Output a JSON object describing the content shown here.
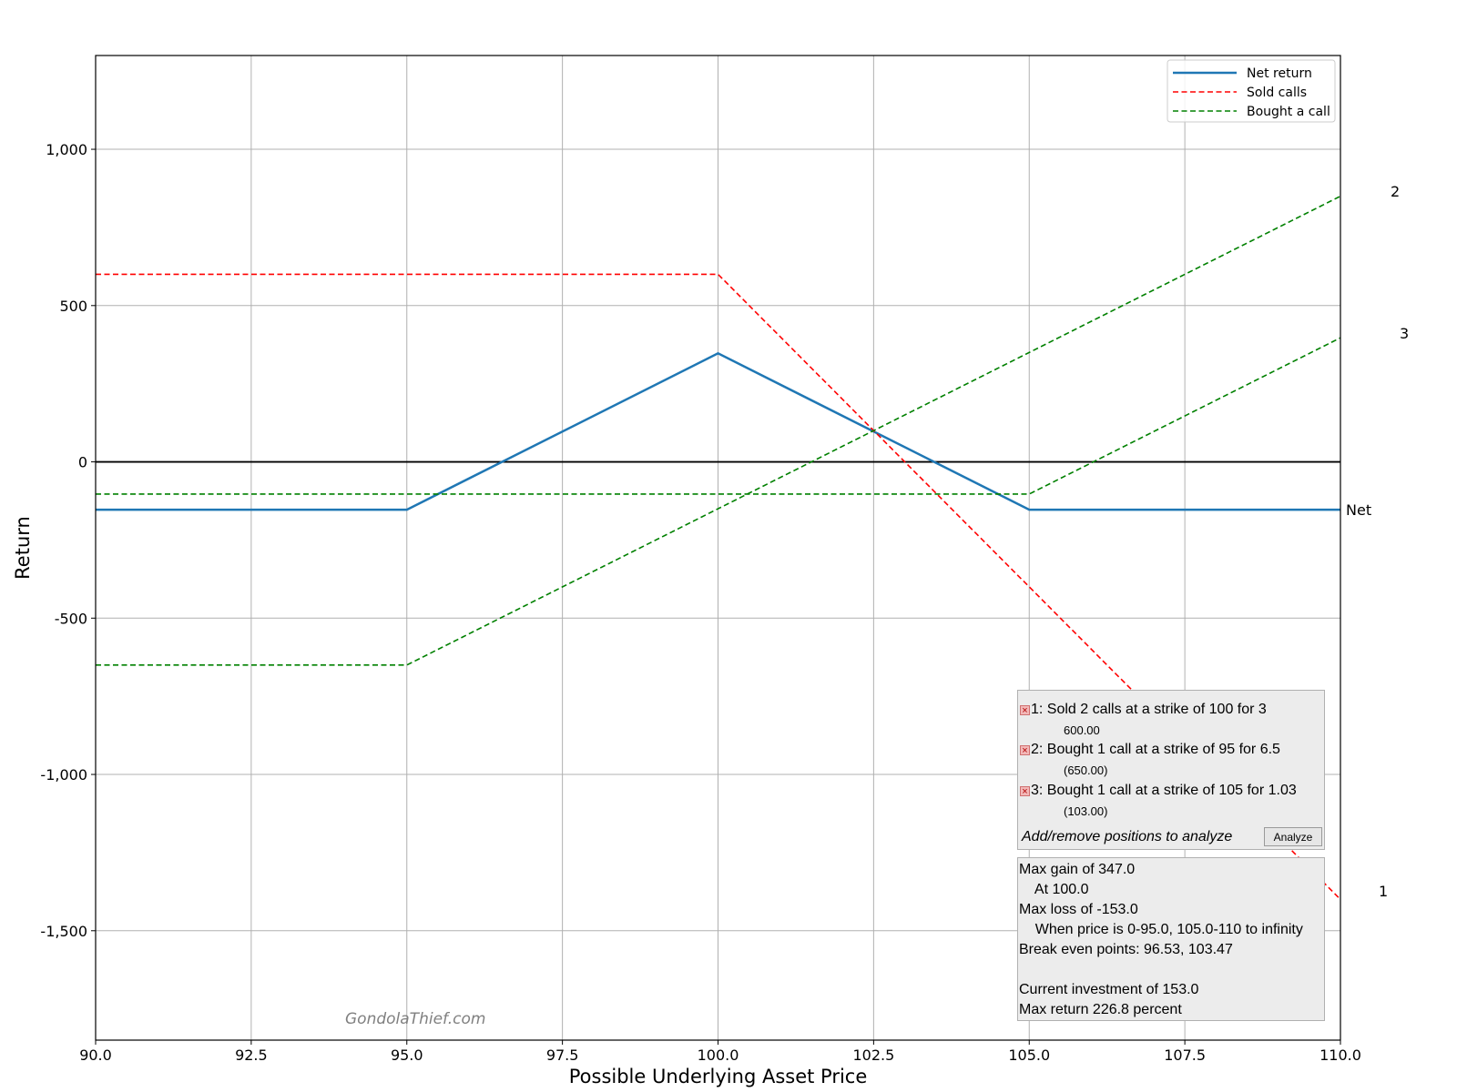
{
  "chart_data": {
    "type": "line",
    "xlabel": "Possible Underlying Asset Price",
    "ylabel": "Return",
    "xlim": [
      90,
      110
    ],
    "ylim": [
      -1850,
      1300
    ],
    "grid": true,
    "x_ticks": [
      "90.0",
      "92.5",
      "95.0",
      "97.5",
      "100.0",
      "102.5",
      "105.0",
      "107.5",
      "110.0"
    ],
    "y_ticks": [
      {
        "value": 1000,
        "label": "1,000"
      },
      {
        "value": 500,
        "label": "500"
      },
      {
        "value": 0,
        "label": "0"
      },
      {
        "value": -500,
        "label": "-500"
      },
      {
        "value": -1000,
        "label": "-1,000"
      },
      {
        "value": -1500,
        "label": "-1,500"
      }
    ],
    "legend": {
      "placement": "top-right",
      "entries": [
        "Net return",
        "Sold calls",
        "Bought a call"
      ]
    },
    "series": [
      {
        "name": "Net return",
        "style": "solid",
        "color": "#1f77b4",
        "end_label": "Net",
        "points": [
          [
            90,
            -153
          ],
          [
            95,
            -153
          ],
          [
            100,
            347
          ],
          [
            105,
            -153
          ],
          [
            110,
            -153
          ]
        ]
      },
      {
        "name": "Sold calls",
        "style": "dashed",
        "color": "#ff0000",
        "end_label": "1",
        "points": [
          [
            90,
            600
          ],
          [
            100,
            600
          ],
          [
            110,
            -1400
          ]
        ]
      },
      {
        "name": "Bought a call",
        "style": "dashed",
        "color": "#008000",
        "end_label": "2",
        "points": [
          [
            90,
            -650
          ],
          [
            95,
            -650
          ],
          [
            110,
            850
          ]
        ]
      },
      {
        "name": "Bought a call",
        "style": "dashed",
        "color": "#008000",
        "end_label": "3",
        "points": [
          [
            90,
            -103
          ],
          [
            105,
            -103
          ],
          [
            110,
            397
          ]
        ]
      }
    ],
    "zero_line": {
      "value": 0,
      "color": "#000000"
    }
  },
  "watermark": "GondolaThief.com",
  "positions_panel": {
    "positions": [
      {
        "label": "1: Sold 2 calls at a strike of 100 for 3",
        "amount": "600.00"
      },
      {
        "label": "2: Bought 1 call at a strike of 95 for 6.5",
        "amount": "(650.00)"
      },
      {
        "label": "3: Bought 1 call at a strike of 105 for 1.03",
        "amount": "(103.00)"
      }
    ],
    "prompt": "Add/remove positions to analyze",
    "analyze_label": "Analyze"
  },
  "summary_panel": {
    "lines": [
      "Max gain of 347.0",
      "    At 100.0",
      "Max loss of -153.0",
      "    When price is 0-95.0, 105.0-110 to infinity",
      "Break even points: 96.53, 103.47",
      "",
      "Current investment of 153.0",
      "Max return 226.8 percent"
    ]
  }
}
